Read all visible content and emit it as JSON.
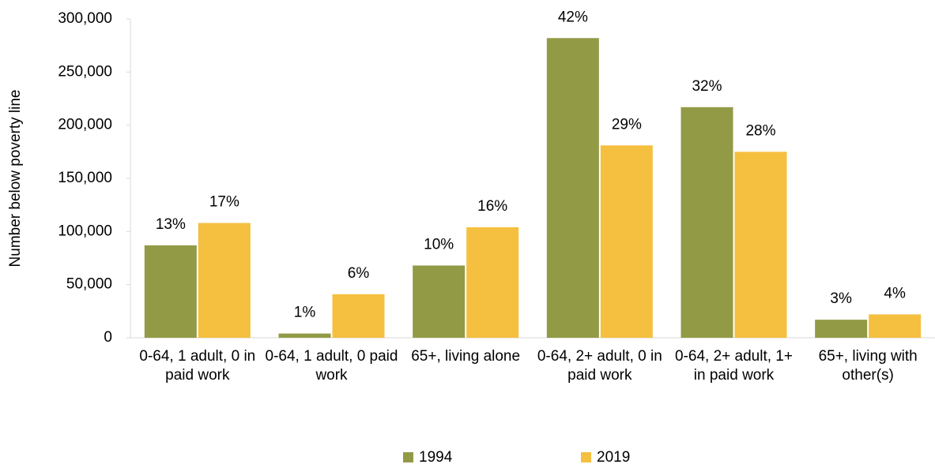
{
  "chart_data": {
    "type": "bar",
    "y_label": "Number below poverty line",
    "categories": [
      "0-64, 1 adult, 0 in paid work",
      "0-64, 1 adult, 0 paid work",
      "65+, living alone",
      "0-64, 2+ adult, 0 in paid work",
      "0-64, 2+ adult, 1+ in paid work",
      "65+, living with other(s)"
    ],
    "series": [
      {
        "name": "1994",
        "color": "#939a46",
        "values": [
          87000,
          4000,
          68000,
          282000,
          217000,
          17000
        ],
        "labels": [
          "13%",
          "1%",
          "10%",
          "42%",
          "32%",
          "3%"
        ]
      },
      {
        "name": "2019",
        "color": "#f5bf3f",
        "values": [
          108000,
          41000,
          104000,
          181000,
          175000,
          22000
        ],
        "labels": [
          "17%",
          "6%",
          "16%",
          "29%",
          "28%",
          "4%"
        ]
      }
    ],
    "ylim": [
      0,
      300000
    ],
    "yticks": [
      0,
      {
        "value": 50000,
        "label": "50,000"
      },
      {
        "value": 100000,
        "label": "100,000"
      },
      {
        "value": 150000,
        "label": "150,000"
      },
      {
        "value": 200000,
        "label": "200,000"
      },
      {
        "value": 250000,
        "label": "250,000"
      },
      {
        "value": 300000,
        "label": "300,000"
      }
    ],
    "grid": false,
    "legend": "bottom"
  }
}
